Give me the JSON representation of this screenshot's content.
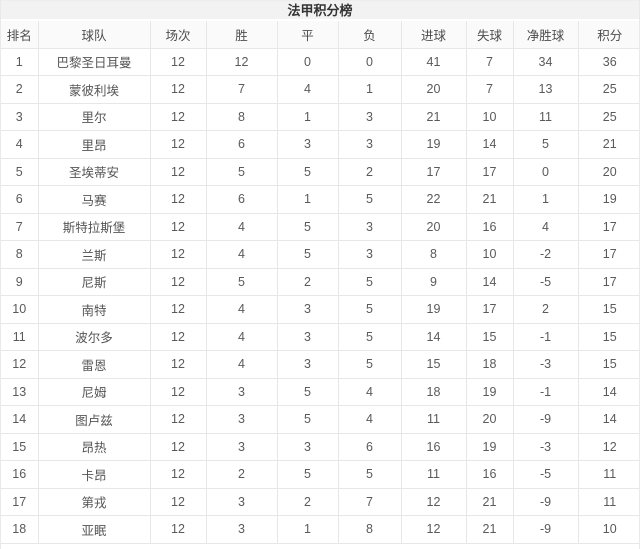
{
  "title": "法甲积分榜",
  "table": {
    "columns": [
      "排名",
      "球队",
      "场次",
      "胜",
      "平",
      "负",
      "进球",
      "失球",
      "净胜球",
      "积分"
    ],
    "rows": [
      {
        "rank": "1",
        "team": "巴黎圣日耳曼",
        "played": "12",
        "wins": "12",
        "draws": "0",
        "losses": "0",
        "goals_for": "41",
        "goals_against": "7",
        "goal_diff": "34",
        "points": "36"
      },
      {
        "rank": "2",
        "team": "蒙彼利埃",
        "played": "12",
        "wins": "7",
        "draws": "4",
        "losses": "1",
        "goals_for": "20",
        "goals_against": "7",
        "goal_diff": "13",
        "points": "25"
      },
      {
        "rank": "3",
        "team": "里尔",
        "played": "12",
        "wins": "8",
        "draws": "1",
        "losses": "3",
        "goals_for": "21",
        "goals_against": "10",
        "goal_diff": "11",
        "points": "25"
      },
      {
        "rank": "4",
        "team": "里昂",
        "played": "12",
        "wins": "6",
        "draws": "3",
        "losses": "3",
        "goals_for": "19",
        "goals_against": "14",
        "goal_diff": "5",
        "points": "21"
      },
      {
        "rank": "5",
        "team": "圣埃蒂安",
        "played": "12",
        "wins": "5",
        "draws": "5",
        "losses": "2",
        "goals_for": "17",
        "goals_against": "17",
        "goal_diff": "0",
        "points": "20"
      },
      {
        "rank": "6",
        "team": "马赛",
        "played": "12",
        "wins": "6",
        "draws": "1",
        "losses": "5",
        "goals_for": "22",
        "goals_against": "21",
        "goal_diff": "1",
        "points": "19"
      },
      {
        "rank": "7",
        "team": "斯特拉斯堡",
        "played": "12",
        "wins": "4",
        "draws": "5",
        "losses": "3",
        "goals_for": "20",
        "goals_against": "16",
        "goal_diff": "4",
        "points": "17"
      },
      {
        "rank": "8",
        "team": "兰斯",
        "played": "12",
        "wins": "4",
        "draws": "5",
        "losses": "3",
        "goals_for": "8",
        "goals_against": "10",
        "goal_diff": "-2",
        "points": "17"
      },
      {
        "rank": "9",
        "team": "尼斯",
        "played": "12",
        "wins": "5",
        "draws": "2",
        "losses": "5",
        "goals_for": "9",
        "goals_against": "14",
        "goal_diff": "-5",
        "points": "17"
      },
      {
        "rank": "10",
        "team": "南特",
        "played": "12",
        "wins": "4",
        "draws": "3",
        "losses": "5",
        "goals_for": "19",
        "goals_against": "17",
        "goal_diff": "2",
        "points": "15"
      },
      {
        "rank": "11",
        "team": "波尔多",
        "played": "12",
        "wins": "4",
        "draws": "3",
        "losses": "5",
        "goals_for": "14",
        "goals_against": "15",
        "goal_diff": "-1",
        "points": "15"
      },
      {
        "rank": "12",
        "team": "雷恩",
        "played": "12",
        "wins": "4",
        "draws": "3",
        "losses": "5",
        "goals_for": "15",
        "goals_against": "18",
        "goal_diff": "-3",
        "points": "15"
      },
      {
        "rank": "13",
        "team": "尼姆",
        "played": "12",
        "wins": "3",
        "draws": "5",
        "losses": "4",
        "goals_for": "18",
        "goals_against": "19",
        "goal_diff": "-1",
        "points": "14"
      },
      {
        "rank": "14",
        "team": "图卢兹",
        "played": "12",
        "wins": "3",
        "draws": "5",
        "losses": "4",
        "goals_for": "11",
        "goals_against": "20",
        "goal_diff": "-9",
        "points": "14"
      },
      {
        "rank": "15",
        "team": "昂热",
        "played": "12",
        "wins": "3",
        "draws": "3",
        "losses": "6",
        "goals_for": "16",
        "goals_against": "19",
        "goal_diff": "-3",
        "points": "12"
      },
      {
        "rank": "16",
        "team": "卡昂",
        "played": "12",
        "wins": "2",
        "draws": "5",
        "losses": "5",
        "goals_for": "11",
        "goals_against": "16",
        "goal_diff": "-5",
        "points": "11"
      },
      {
        "rank": "17",
        "team": "第戎",
        "played": "12",
        "wins": "3",
        "draws": "2",
        "losses": "7",
        "goals_for": "12",
        "goals_against": "21",
        "goal_diff": "-9",
        "points": "11"
      },
      {
        "rank": "18",
        "team": "亚眠",
        "played": "12",
        "wins": "3",
        "draws": "1",
        "losses": "8",
        "goals_for": "12",
        "goals_against": "21",
        "goal_diff": "-9",
        "points": "10"
      }
    ]
  },
  "colors": {
    "title_bar_background": "#f2f2f2",
    "header_background": "#fafafa",
    "row_background": "#ffffff",
    "border": "#e7e7e7",
    "title_text": "#333333",
    "cell_text": "#5a5a5a"
  }
}
